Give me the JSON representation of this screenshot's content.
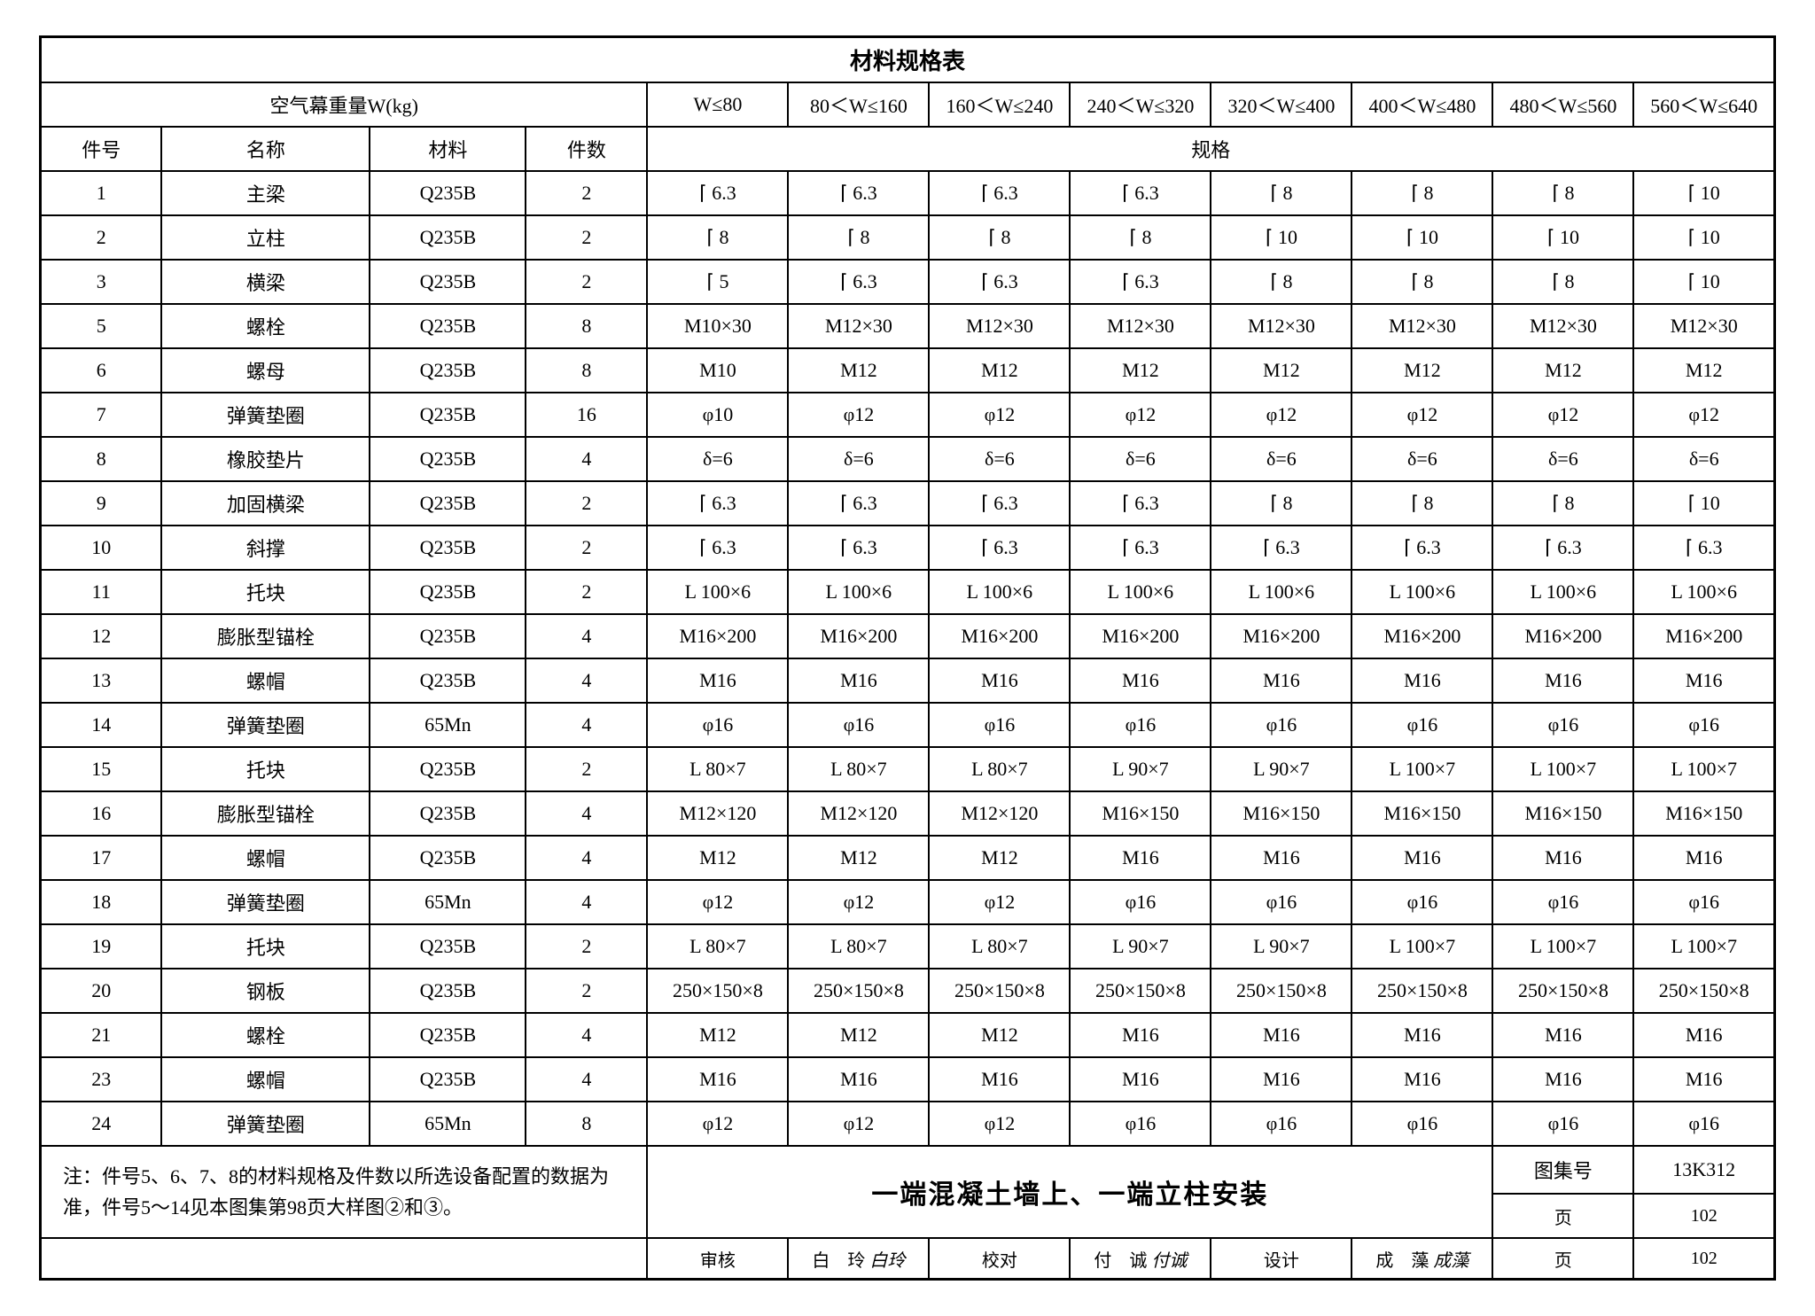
{
  "title": "材料规格表",
  "header": {
    "weight_label": "空气幕重量W(kg)",
    "spec_label": "规格",
    "cols": [
      "件号",
      "名称",
      "材料",
      "件数"
    ],
    "ranges": [
      "W≤80",
      "80＜W≤160",
      "160＜W≤240",
      "240＜W≤320",
      "320＜W≤400",
      "400＜W≤480",
      "480＜W≤560",
      "560＜W≤640"
    ]
  },
  "rows": [
    {
      "n": "1",
      "name": "主梁",
      "mat": "Q235B",
      "qty": "2",
      "v": [
        "⌈ 6.3",
        "⌈ 6.3",
        "⌈ 6.3",
        "⌈ 6.3",
        "⌈ 8",
        "⌈ 8",
        "⌈ 8",
        "⌈ 10"
      ]
    },
    {
      "n": "2",
      "name": "立柱",
      "mat": "Q235B",
      "qty": "2",
      "v": [
        "⌈ 8",
        "⌈ 8",
        "⌈ 8",
        "⌈ 8",
        "⌈ 10",
        "⌈ 10",
        "⌈ 10",
        "⌈ 10"
      ]
    },
    {
      "n": "3",
      "name": "横梁",
      "mat": "Q235B",
      "qty": "2",
      "v": [
        "⌈ 5",
        "⌈ 6.3",
        "⌈ 6.3",
        "⌈ 6.3",
        "⌈ 8",
        "⌈ 8",
        "⌈ 8",
        "⌈ 10"
      ]
    },
    {
      "n": "5",
      "name": "螺栓",
      "mat": "Q235B",
      "qty": "8",
      "v": [
        "M10×30",
        "M12×30",
        "M12×30",
        "M12×30",
        "M12×30",
        "M12×30",
        "M12×30",
        "M12×30"
      ]
    },
    {
      "n": "6",
      "name": "螺母",
      "mat": "Q235B",
      "qty": "8",
      "v": [
        "M10",
        "M12",
        "M12",
        "M12",
        "M12",
        "M12",
        "M12",
        "M12"
      ]
    },
    {
      "n": "7",
      "name": "弹簧垫圈",
      "mat": "Q235B",
      "qty": "16",
      "v": [
        "φ10",
        "φ12",
        "φ12",
        "φ12",
        "φ12",
        "φ12",
        "φ12",
        "φ12"
      ]
    },
    {
      "n": "8",
      "name": "橡胶垫片",
      "mat": "Q235B",
      "qty": "4",
      "v": [
        "δ=6",
        "δ=6",
        "δ=6",
        "δ=6",
        "δ=6",
        "δ=6",
        "δ=6",
        "δ=6"
      ]
    },
    {
      "n": "9",
      "name": "加固横梁",
      "mat": "Q235B",
      "qty": "2",
      "v": [
        "⌈ 6.3",
        "⌈ 6.3",
        "⌈ 6.3",
        "⌈ 6.3",
        "⌈ 8",
        "⌈ 8",
        "⌈ 8",
        "⌈ 10"
      ]
    },
    {
      "n": "10",
      "name": "斜撑",
      "mat": "Q235B",
      "qty": "2",
      "v": [
        "⌈ 6.3",
        "⌈ 6.3",
        "⌈ 6.3",
        "⌈ 6.3",
        "⌈ 6.3",
        "⌈ 6.3",
        "⌈ 6.3",
        "⌈ 6.3"
      ]
    },
    {
      "n": "11",
      "name": "托块",
      "mat": "Q235B",
      "qty": "2",
      "v": [
        "L 100×6",
        "L 100×6",
        "L 100×6",
        "L 100×6",
        "L 100×6",
        "L 100×6",
        "L 100×6",
        "L 100×6"
      ]
    },
    {
      "n": "12",
      "name": "膨胀型锚栓",
      "mat": "Q235B",
      "qty": "4",
      "v": [
        "M16×200",
        "M16×200",
        "M16×200",
        "M16×200",
        "M16×200",
        "M16×200",
        "M16×200",
        "M16×200"
      ]
    },
    {
      "n": "13",
      "name": "螺帽",
      "mat": "Q235B",
      "qty": "4",
      "v": [
        "M16",
        "M16",
        "M16",
        "M16",
        "M16",
        "M16",
        "M16",
        "M16"
      ]
    },
    {
      "n": "14",
      "name": "弹簧垫圈",
      "mat": "65Mn",
      "qty": "4",
      "v": [
        "φ16",
        "φ16",
        "φ16",
        "φ16",
        "φ16",
        "φ16",
        "φ16",
        "φ16"
      ]
    },
    {
      "n": "15",
      "name": "托块",
      "mat": "Q235B",
      "qty": "2",
      "v": [
        "L 80×7",
        "L 80×7",
        "L 80×7",
        "L 90×7",
        "L 90×7",
        "L 100×7",
        "L 100×7",
        "L 100×7"
      ]
    },
    {
      "n": "16",
      "name": "膨胀型锚栓",
      "mat": "Q235B",
      "qty": "4",
      "v": [
        "M12×120",
        "M12×120",
        "M12×120",
        "M16×150",
        "M16×150",
        "M16×150",
        "M16×150",
        "M16×150"
      ]
    },
    {
      "n": "17",
      "name": "螺帽",
      "mat": "Q235B",
      "qty": "4",
      "v": [
        "M12",
        "M12",
        "M12",
        "M16",
        "M16",
        "M16",
        "M16",
        "M16"
      ]
    },
    {
      "n": "18",
      "name": "弹簧垫圈",
      "mat": "65Mn",
      "qty": "4",
      "v": [
        "φ12",
        "φ12",
        "φ12",
        "φ16",
        "φ16",
        "φ16",
        "φ16",
        "φ16"
      ]
    },
    {
      "n": "19",
      "name": "托块",
      "mat": "Q235B",
      "qty": "2",
      "v": [
        "L 80×7",
        "L 80×7",
        "L 80×7",
        "L 90×7",
        "L 90×7",
        "L 100×7",
        "L 100×7",
        "L 100×7"
      ]
    },
    {
      "n": "20",
      "name": "钢板",
      "mat": "Q235B",
      "qty": "2",
      "v": [
        "250×150×8",
        "250×150×8",
        "250×150×8",
        "250×150×8",
        "250×150×8",
        "250×150×8",
        "250×150×8",
        "250×150×8"
      ]
    },
    {
      "n": "21",
      "name": "螺栓",
      "mat": "Q235B",
      "qty": "4",
      "v": [
        "M12",
        "M12",
        "M12",
        "M16",
        "M16",
        "M16",
        "M16",
        "M16"
      ]
    },
    {
      "n": "23",
      "name": "螺帽",
      "mat": "Q235B",
      "qty": "4",
      "v": [
        "M16",
        "M16",
        "M16",
        "M16",
        "M16",
        "M16",
        "M16",
        "M16"
      ]
    },
    {
      "n": "24",
      "name": "弹簧垫圈",
      "mat": "65Mn",
      "qty": "8",
      "v": [
        "φ12",
        "φ12",
        "φ12",
        "φ16",
        "φ16",
        "φ16",
        "φ16",
        "φ16"
      ]
    }
  ],
  "note": "注：件号5、6、7、8的材料规格及件数以所选设备配置的数据为准，件号5～14见本图集第98页大样图②和③。",
  "footer": {
    "title": "一端混凝土墙上、一端立柱安装",
    "code_label": "图集号",
    "code_value": "13K312",
    "page_label": "页",
    "page_value": "102",
    "review_label": "审核",
    "review_name": "白　玲",
    "review_sig": "白玲",
    "check_label": "校对",
    "check_name": "付　诚",
    "check_sig": "付诚",
    "design_label": "设计",
    "design_name": "成　藻",
    "design_sig": "成藻"
  },
  "style": {
    "border_color": "#000000",
    "background_color": "#ffffff",
    "text_color": "#000000",
    "title_fontsize": 26,
    "cell_fontsize": 22,
    "footer_title_fontsize": 30,
    "col_widths_pct": [
      7,
      12,
      9,
      7,
      8.125,
      8.125,
      8.125,
      8.125,
      8.125,
      8.125,
      8.125,
      8.125
    ]
  }
}
